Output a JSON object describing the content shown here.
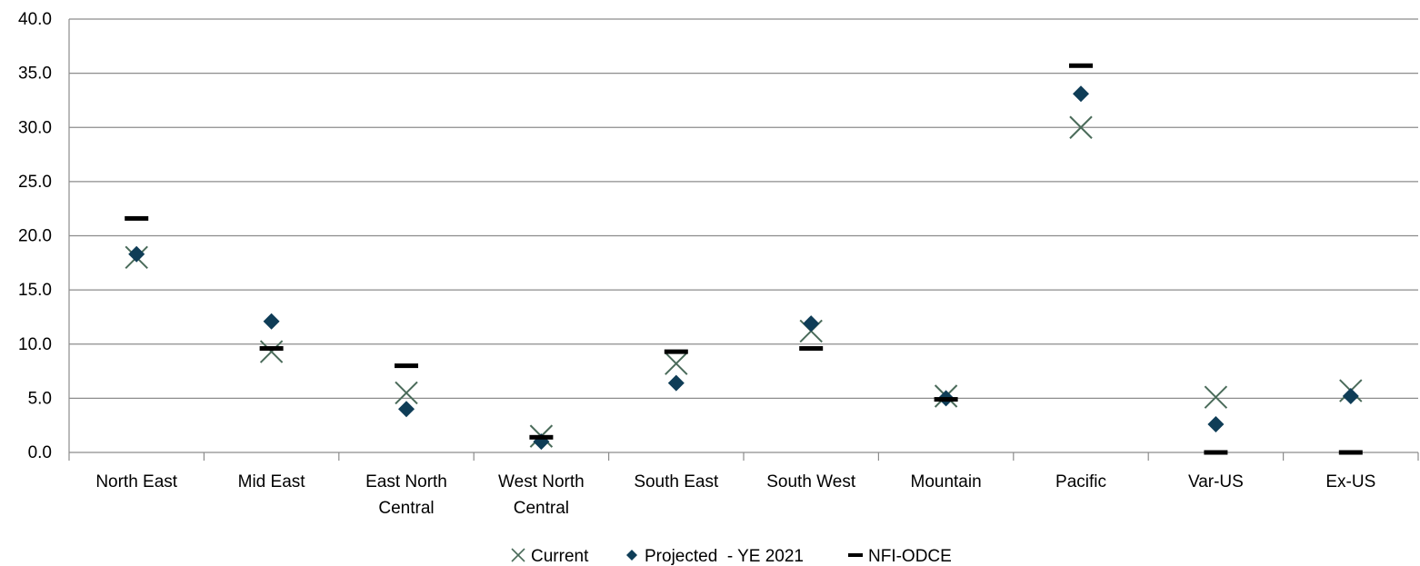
{
  "chart_data": {
    "type": "scatter",
    "title": "",
    "xlabel": "",
    "ylabel": "",
    "ylim": [
      0,
      40
    ],
    "yticks": [
      "0.0",
      "5.0",
      "10.0",
      "15.0",
      "20.0",
      "25.0",
      "30.0",
      "35.0",
      "40.0"
    ],
    "grid": true,
    "legend_position": "bottom",
    "categories": [
      [
        "North East"
      ],
      [
        "Mid East"
      ],
      [
        "East North",
        "Central"
      ],
      [
        "West North",
        "Central"
      ],
      [
        "South East"
      ],
      [
        "South West"
      ],
      [
        "Mountain"
      ],
      [
        "Pacific"
      ],
      [
        "Var-US"
      ],
      [
        "Ex-US"
      ]
    ],
    "series": [
      {
        "name": "Current",
        "marker": "x",
        "color": "#4a6b5a",
        "values": [
          18.0,
          9.3,
          5.5,
          1.5,
          8.2,
          11.2,
          5.2,
          30.0,
          5.1,
          5.7
        ]
      },
      {
        "name": "Projected  - YE 2021",
        "marker": "diamond",
        "color": "#0f3d57",
        "values": [
          18.3,
          12.1,
          4.0,
          1.0,
          6.4,
          11.9,
          5.0,
          33.1,
          2.6,
          5.2
        ]
      },
      {
        "name": "NFI-ODCE",
        "marker": "dash",
        "color": "#000000",
        "values": [
          21.6,
          9.6,
          8.0,
          1.4,
          9.3,
          9.6,
          4.9,
          35.7,
          0.0,
          0.0
        ]
      }
    ]
  }
}
